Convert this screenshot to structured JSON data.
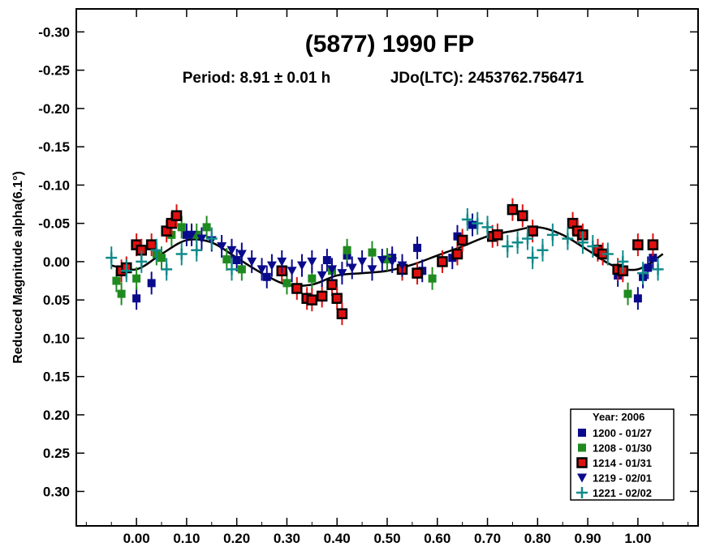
{
  "chart_data": {
    "type": "scatter",
    "title": "(5877) 1990 FP",
    "subtitle_period": "Period: 8.91 ± 0.01 h",
    "subtitle_epoch": "JDo(LTC): 2453762.756471",
    "ylabel": "Reduced Magnitude alpha(6.1°)",
    "xlabel": "",
    "xlim": [
      -0.12,
      1.12
    ],
    "ylim": [
      -0.33,
      0.345
    ],
    "y_inverted": true,
    "grid": false,
    "x_ticks": [
      "0.00",
      "0.10",
      "0.20",
      "0.30",
      "0.40",
      "0.50",
      "0.60",
      "0.70",
      "0.80",
      "0.90",
      "1.00"
    ],
    "y_ticks": [
      "-0.30",
      "-0.25",
      "-0.20",
      "-0.15",
      "-0.10",
      "-0.05",
      "0.00",
      "0.05",
      "0.10",
      "0.15",
      "0.20",
      "0.25",
      "0.30"
    ],
    "legend": {
      "placement": "bottom-right",
      "title": "Year: 2006",
      "entries": [
        {
          "label": "1200 - 01/27",
          "marker": "square",
          "color": "#0a0a8c"
        },
        {
          "label": "1208 - 01/30",
          "marker": "square",
          "color": "#1f8a1f"
        },
        {
          "label": "1214 - 01/31",
          "marker": "square-outlined",
          "color": "#e01010"
        },
        {
          "label": "1219 - 02/01",
          "marker": "triangle-down",
          "color": "#0a0a8c"
        },
        {
          "label": "1221 - 02/02",
          "marker": "plus",
          "color": "#108a8a"
        }
      ]
    },
    "fit_curve": {
      "x": [
        -0.05,
        0.0,
        0.05,
        0.1,
        0.15,
        0.2,
        0.25,
        0.3,
        0.35,
        0.4,
        0.45,
        0.5,
        0.55,
        0.6,
        0.65,
        0.7,
        0.75,
        0.8,
        0.85,
        0.9,
        0.95,
        1.0,
        1.05
      ],
      "y": [
        0.005,
        0.01,
        -0.01,
        -0.028,
        -0.025,
        -0.005,
        0.015,
        0.03,
        0.03,
        0.018,
        0.015,
        0.012,
        0.004,
        -0.008,
        -0.02,
        -0.033,
        -0.04,
        -0.045,
        -0.035,
        -0.015,
        0.005,
        0.01,
        -0.01
      ]
    },
    "series": [
      {
        "name": "1200 - 01/27",
        "x": [
          0.0,
          0.03,
          0.1,
          0.2,
          0.26,
          0.38,
          0.42,
          0.51,
          0.56,
          0.57,
          0.63,
          0.64,
          0.67,
          0.96,
          1.0,
          1.01,
          1.02,
          1.03
        ],
        "y": [
          0.048,
          0.028,
          -0.035,
          -0.002,
          0.02,
          -0.002,
          -0.008,
          -0.005,
          -0.018,
          0.012,
          -0.005,
          -0.033,
          -0.048,
          0.018,
          0.048,
          0.02,
          0.008,
          -0.005
        ]
      },
      {
        "name": "1208 - 01/30",
        "x": [
          -0.04,
          -0.03,
          0.0,
          0.04,
          0.05,
          0.07,
          0.09,
          0.12,
          0.14,
          0.18,
          0.21,
          0.3,
          0.35,
          0.39,
          0.42,
          0.47,
          0.5,
          0.59,
          0.64,
          0.98
        ],
        "y": [
          0.025,
          0.042,
          0.022,
          -0.01,
          -0.005,
          -0.035,
          -0.045,
          -0.035,
          -0.045,
          -0.003,
          0.01,
          0.028,
          0.022,
          0.012,
          -0.015,
          -0.012,
          -0.003,
          0.022,
          -0.012,
          0.042
        ]
      },
      {
        "name": "1214 - 01/31",
        "x": [
          -0.03,
          -0.02,
          0.0,
          0.01,
          0.03,
          0.06,
          0.07,
          0.08,
          0.29,
          0.32,
          0.34,
          0.35,
          0.37,
          0.39,
          0.4,
          0.41,
          0.53,
          0.56,
          0.61,
          0.64,
          0.65,
          0.71,
          0.72,
          0.75,
          0.77,
          0.79,
          0.87,
          0.88,
          0.89,
          0.92,
          0.93,
          0.96,
          0.97,
          1.0,
          1.03
        ],
        "y": [
          0.012,
          0.008,
          -0.022,
          -0.015,
          -0.022,
          -0.04,
          -0.05,
          -0.06,
          0.012,
          0.035,
          0.048,
          0.05,
          0.045,
          0.03,
          0.048,
          0.068,
          0.01,
          0.015,
          0.0,
          -0.01,
          -0.028,
          -0.033,
          -0.035,
          -0.068,
          -0.06,
          -0.04,
          -0.05,
          -0.04,
          -0.035,
          -0.015,
          -0.01,
          0.01,
          0.012,
          -0.022,
          -0.022
        ]
      },
      {
        "name": "1219 - 02/01",
        "x": [
          0.11,
          0.13,
          0.15,
          0.17,
          0.19,
          0.21,
          0.23,
          0.25,
          0.27,
          0.29,
          0.31,
          0.33,
          0.35,
          0.37,
          0.39,
          0.41,
          0.43,
          0.45,
          0.47,
          0.49,
          0.51,
          0.53
        ],
        "y": [
          -0.035,
          -0.03,
          -0.028,
          -0.02,
          -0.015,
          -0.01,
          0.0,
          0.01,
          0.005,
          0.0,
          0.012,
          0.005,
          0.0,
          0.018,
          0.01,
          0.015,
          0.008,
          0.0,
          0.01,
          -0.002,
          0.0,
          0.005
        ]
      },
      {
        "name": "1221 - 02/02",
        "x": [
          -0.05,
          -0.02,
          0.01,
          0.04,
          0.06,
          0.09,
          0.12,
          0.15,
          0.19,
          0.66,
          0.68,
          0.7,
          0.74,
          0.76,
          0.78,
          0.79,
          0.81,
          0.83,
          0.86,
          0.89,
          0.91,
          0.94,
          0.97,
          1.01,
          1.04
        ],
        "y": [
          -0.005,
          0.012,
          0.0,
          -0.015,
          0.01,
          -0.01,
          -0.015,
          -0.03,
          0.01,
          -0.055,
          -0.05,
          -0.045,
          -0.02,
          -0.025,
          -0.03,
          -0.005,
          -0.015,
          -0.035,
          -0.03,
          -0.025,
          -0.02,
          -0.01,
          0.0,
          0.015,
          0.01
        ]
      }
    ]
  }
}
